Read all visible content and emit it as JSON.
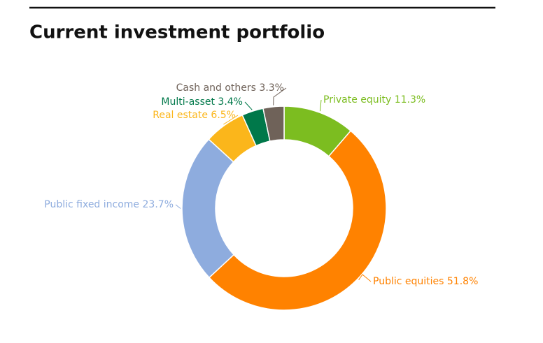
{
  "chart_data": {
    "type": "donut",
    "title": "Current investment portfolio",
    "categories": [
      "Private equity",
      "Public equities",
      "Public fixed income",
      "Real estate",
      "Multi-asset",
      "Cash and others"
    ],
    "values": [
      11.3,
      51.8,
      23.7,
      6.5,
      3.4,
      3.3
    ],
    "value_labels": [
      "11.3%",
      "51.8%",
      "23.7%",
      "6.5%",
      "3.4%",
      "3.3%"
    ],
    "colors": [
      "#7cbd20",
      "#ff8200",
      "#8eacde",
      "#fbb61b",
      "#00784a",
      "#6f6259"
    ]
  }
}
